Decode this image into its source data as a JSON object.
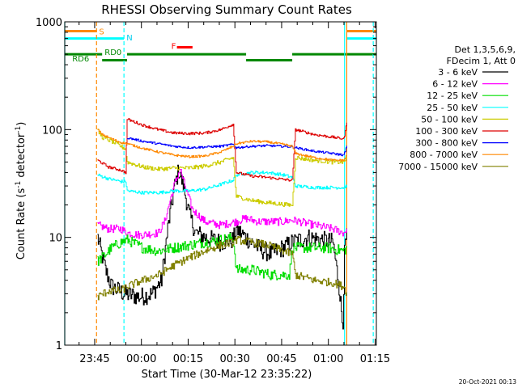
{
  "chart_data": {
    "type": "line",
    "title": "RHESSI Observing Summary Count Rates",
    "xlabel": "Start Time (30-Mar-12 23:35:22)",
    "ylabel_parts": [
      "Count Rate (s",
      "-1",
      " detector",
      "-1",
      ")"
    ],
    "yscale": "log",
    "ylim": [
      1,
      1000
    ],
    "xlim_min": [
      0,
      100
    ],
    "x_tick_labels": [
      {
        "t": 9.6,
        "label": "23:45"
      },
      {
        "t": 24.6,
        "label": "00:00"
      },
      {
        "t": 39.6,
        "label": "00:15"
      },
      {
        "t": 54.6,
        "label": "00:30"
      },
      {
        "t": 69.6,
        "label": "00:45"
      },
      {
        "t": 84.6,
        "label": "01:00"
      },
      {
        "t": 99.6,
        "label": "01:15"
      }
    ],
    "y_tick_labels": [
      {
        "v": 1,
        "label": "1"
      },
      {
        "v": 10,
        "label": "10"
      },
      {
        "v": 100,
        "label": "100"
      },
      {
        "v": 1000,
        "label": "1000"
      }
    ],
    "legend": {
      "header": [
        "Det 1,3,5,6,9,",
        "FDecim 1, Att 0"
      ],
      "position": "right",
      "entries": [
        {
          "label": "3 - 6 keV",
          "color": "#000000"
        },
        {
          "label": "6 - 12 keV",
          "color": "#ff00ff"
        },
        {
          "label": "12 - 25 keV",
          "color": "#00dd00"
        },
        {
          "label": "25 - 50 keV",
          "color": "#00ffff"
        },
        {
          "label": "50 - 100 keV",
          "color": "#cccc00"
        },
        {
          "label": "100 - 300 keV",
          "color": "#dd0000"
        },
        {
          "label": "300 - 800 keV",
          "color": "#0000ff"
        },
        {
          "label": "800 - 7000 keV",
          "color": "#ff8800"
        },
        {
          "label": "7000 - 15000 keV",
          "color": "#808000"
        }
      ]
    },
    "flag_labels": [
      {
        "label": "S",
        "color": "#ff8800",
        "t": 11.0,
        "y": 820
      },
      {
        "label": "N",
        "color": "#00ccee",
        "t": 19.8,
        "y": 720
      },
      {
        "label": "F",
        "color": "#ff0000",
        "t": 34.2,
        "y": 600
      },
      {
        "label": "RD0",
        "color": "#008800",
        "t": 12.8,
        "y": 530
      },
      {
        "label": "RD6",
        "color": "#008800",
        "t": 2.4,
        "y": 460
      }
    ],
    "flag_bars": [
      {
        "color": "#ff8800",
        "y": 820,
        "segments": [
          [
            0,
            10.2
          ],
          [
            90.5,
            100
          ]
        ]
      },
      {
        "color": "#00ffff",
        "y": 700,
        "segments": [
          [
            0,
            19.0
          ],
          [
            90.5,
            100
          ]
        ]
      },
      {
        "color": "#ff0000",
        "y": 580,
        "segments": [
          [
            36.0,
            41.0
          ]
        ]
      },
      {
        "color": "#008800",
        "y": 500,
        "segments": [
          [
            0,
            12.0
          ],
          [
            20.0,
            58.2
          ],
          [
            73.0,
            100
          ]
        ]
      },
      {
        "color": "#008800",
        "y": 440,
        "segments": [
          [
            12.0,
            20.0
          ],
          [
            58.2,
            73.0
          ]
        ]
      }
    ],
    "vertical_markers": [
      {
        "t": 0.0,
        "color": "#00ffff",
        "dash": false
      },
      {
        "t": 10.2,
        "color": "#ff8800",
        "dash": true
      },
      {
        "t": 19.0,
        "color": "#00ffff",
        "dash": true
      },
      {
        "t": 89.8,
        "color": "#00ffff",
        "dash": false
      },
      {
        "t": 90.5,
        "color": "#ff8800",
        "dash": false
      },
      {
        "t": 99.0,
        "color": "#00ffff",
        "dash": true
      }
    ],
    "series": [
      {
        "name": "3 - 6 keV",
        "color": "#000000",
        "noise": 0.35,
        "points": [
          [
            10.5,
            10
          ],
          [
            13,
            5
          ],
          [
            15,
            3.5
          ],
          [
            19,
            3
          ],
          [
            24,
            2.8
          ],
          [
            28,
            3
          ],
          [
            31,
            4
          ],
          [
            33,
            12
          ],
          [
            35,
            28
          ],
          [
            36.5,
            42
          ],
          [
            38,
            30
          ],
          [
            40,
            16
          ],
          [
            42,
            11
          ],
          [
            45,
            10
          ],
          [
            50,
            9
          ],
          [
            54,
            9.5
          ],
          [
            55,
            12
          ],
          [
            58,
            10
          ],
          [
            62,
            8
          ],
          [
            66,
            7
          ],
          [
            70,
            8
          ],
          [
            73,
            9
          ],
          [
            78,
            10
          ],
          [
            82,
            9.5
          ],
          [
            86,
            9
          ],
          [
            88,
            3.5
          ],
          [
            89.2,
            1.5
          ],
          [
            89.8,
            8
          ],
          [
            90.5,
            10
          ]
        ]
      },
      {
        "name": "6 - 12 keV",
        "color": "#ff00ff",
        "noise": 0.15,
        "points": [
          [
            10.5,
            13
          ],
          [
            14,
            12
          ],
          [
            18,
            12
          ],
          [
            20,
            11
          ],
          [
            24,
            10.5
          ],
          [
            30,
            11
          ],
          [
            32,
            14
          ],
          [
            35,
            30
          ],
          [
            37,
            43
          ],
          [
            38.5,
            30
          ],
          [
            41,
            18
          ],
          [
            45,
            14
          ],
          [
            50,
            13
          ],
          [
            55,
            14
          ],
          [
            58,
            15
          ],
          [
            62,
            14
          ],
          [
            66,
            14
          ],
          [
            70,
            14
          ],
          [
            73,
            14.5
          ],
          [
            80,
            13
          ],
          [
            86,
            12
          ],
          [
            89.5,
            11
          ],
          [
            90.5,
            12
          ]
        ]
      },
      {
        "name": "12 - 25 keV",
        "color": "#00dd00",
        "noise": 0.2,
        "points": [
          [
            10.5,
            6
          ],
          [
            12,
            6.5
          ],
          [
            15,
            8
          ],
          [
            18,
            9
          ],
          [
            20,
            9.5
          ],
          [
            25,
            8
          ],
          [
            30,
            7.5
          ],
          [
            35,
            8
          ],
          [
            40,
            8.5
          ],
          [
            45,
            9
          ],
          [
            50,
            9.5
          ],
          [
            54,
            10
          ],
          [
            55,
            5
          ],
          [
            60,
            5
          ],
          [
            66,
            4.5
          ],
          [
            72,
            4.5
          ],
          [
            73,
            8
          ],
          [
            78,
            8
          ],
          [
            84,
            8
          ],
          [
            89.5,
            7.5
          ],
          [
            90.5,
            8
          ]
        ]
      },
      {
        "name": "25 - 50 keV",
        "color": "#00ffff",
        "noise": 0.06,
        "points": [
          [
            10.5,
            38
          ],
          [
            14,
            35
          ],
          [
            18,
            33
          ],
          [
            19.5,
            33
          ],
          [
            20,
            27
          ],
          [
            25,
            26
          ],
          [
            30,
            26
          ],
          [
            35,
            27
          ],
          [
            40,
            27
          ],
          [
            45,
            28
          ],
          [
            50,
            31
          ],
          [
            54,
            34
          ],
          [
            55,
            38
          ],
          [
            60,
            40
          ],
          [
            65,
            40
          ],
          [
            70,
            38
          ],
          [
            73,
            36
          ],
          [
            74,
            30
          ],
          [
            80,
            29
          ],
          [
            86,
            29
          ],
          [
            89.5,
            29
          ],
          [
            90.5,
            30
          ]
        ]
      },
      {
        "name": "50 - 100 keV",
        "color": "#cccc00",
        "noise": 0.08,
        "points": [
          [
            10.5,
            98
          ],
          [
            12,
            85
          ],
          [
            15,
            78
          ],
          [
            18,
            70
          ],
          [
            19.5,
            66
          ],
          [
            20,
            50
          ],
          [
            25,
            45
          ],
          [
            30,
            43
          ],
          [
            35,
            44
          ],
          [
            40,
            44
          ],
          [
            45,
            46
          ],
          [
            50,
            50
          ],
          [
            54,
            55
          ],
          [
            55,
            24
          ],
          [
            60,
            22
          ],
          [
            65,
            21
          ],
          [
            72,
            20
          ],
          [
            73,
            20
          ],
          [
            74,
            55
          ],
          [
            80,
            52
          ],
          [
            86,
            50
          ],
          [
            89.5,
            50
          ],
          [
            90.5,
            55
          ]
        ]
      },
      {
        "name": "100 - 300 keV",
        "color": "#dd0000",
        "noise": 0.05,
        "points": [
          [
            10.5,
            52
          ],
          [
            14,
            45
          ],
          [
            18,
            42
          ],
          [
            19.5,
            40
          ],
          [
            20,
            125
          ],
          [
            25,
            110
          ],
          [
            30,
            100
          ],
          [
            35,
            93
          ],
          [
            40,
            92
          ],
          [
            45,
            93
          ],
          [
            50,
            100
          ],
          [
            54,
            112
          ],
          [
            55,
            40
          ],
          [
            60,
            37
          ],
          [
            65,
            36
          ],
          [
            72,
            34
          ],
          [
            73,
            34
          ],
          [
            74,
            100
          ],
          [
            80,
            90
          ],
          [
            86,
            85
          ],
          [
            89.5,
            82
          ],
          [
            90.5,
            115
          ]
        ]
      },
      {
        "name": "300 - 800 keV",
        "color": "#0000ff",
        "noise": 0.04,
        "points": [
          [
            20,
            84
          ],
          [
            25,
            78
          ],
          [
            30,
            74
          ],
          [
            35,
            70
          ],
          [
            40,
            68
          ],
          [
            45,
            69
          ],
          [
            50,
            70
          ],
          [
            54,
            73
          ],
          [
            55,
            68
          ],
          [
            60,
            70
          ],
          [
            65,
            71
          ],
          [
            70,
            70
          ],
          [
            73,
            69
          ],
          [
            74,
            68
          ],
          [
            80,
            63
          ],
          [
            86,
            60
          ],
          [
            89.5,
            58
          ],
          [
            90.5,
            70
          ]
        ]
      },
      {
        "name": "800 - 7000 keV",
        "color": "#ff8800",
        "noise": 0.04,
        "points": [
          [
            10.5,
            100
          ],
          [
            12,
            90
          ],
          [
            15,
            82
          ],
          [
            18,
            76
          ],
          [
            20,
            74
          ],
          [
            25,
            67
          ],
          [
            30,
            62
          ],
          [
            35,
            58
          ],
          [
            40,
            56
          ],
          [
            45,
            57
          ],
          [
            50,
            62
          ],
          [
            54,
            70
          ],
          [
            55,
            74
          ],
          [
            60,
            78
          ],
          [
            65,
            77
          ],
          [
            70,
            73
          ],
          [
            73,
            70
          ],
          [
            74,
            60
          ],
          [
            80,
            55
          ],
          [
            86,
            52
          ],
          [
            89.5,
            52
          ],
          [
            90.5,
            58
          ]
        ]
      },
      {
        "name": "7000 - 15000 keV",
        "color": "#808000",
        "noise": 0.15,
        "points": [
          [
            10.5,
            2.8
          ],
          [
            14,
            3.2
          ],
          [
            18,
            3.2
          ],
          [
            20,
            3.5
          ],
          [
            25,
            4
          ],
          [
            30,
            4.5
          ],
          [
            35,
            5.5
          ],
          [
            40,
            6.5
          ],
          [
            45,
            7.5
          ],
          [
            50,
            8.5
          ],
          [
            54,
            9
          ],
          [
            55,
            9.5
          ],
          [
            60,
            9
          ],
          [
            65,
            8.5
          ],
          [
            70,
            7.5
          ],
          [
            73,
            7
          ],
          [
            74,
            4.5
          ],
          [
            80,
            4
          ],
          [
            86,
            3.8
          ],
          [
            89.5,
            3.5
          ],
          [
            90.5,
            3
          ]
        ]
      }
    ]
  },
  "footer": {
    "timestamp": "20-Oct-2021 00:13"
  }
}
